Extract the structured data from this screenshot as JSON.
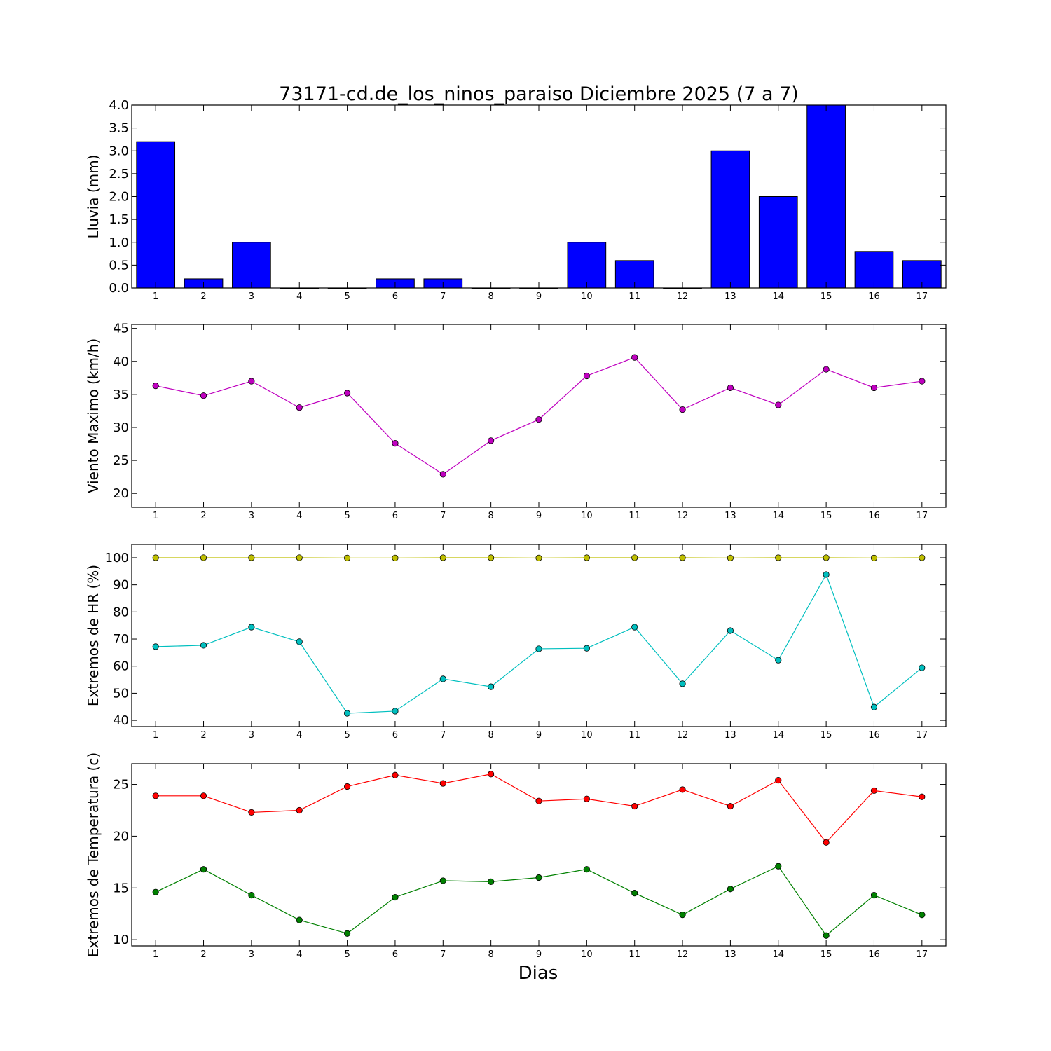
{
  "chart_data": {
    "title": "73171-cd.de_los_ninos_paraiso Diciembre 2025  (7 a 7)",
    "xlabel": "Dias",
    "x": [
      1,
      2,
      3,
      4,
      5,
      6,
      7,
      8,
      9,
      10,
      11,
      12,
      13,
      14,
      15,
      16,
      17
    ],
    "xlim": [
      0.5,
      17.5
    ],
    "panels": [
      {
        "type": "bar",
        "ylabel": "Lluvia (mm)",
        "ylim": [
          0,
          4.0
        ],
        "yticks": [
          0.0,
          0.5,
          1.0,
          1.5,
          2.0,
          2.5,
          3.0,
          3.5,
          4.0
        ],
        "ytick_labels": [
          "0.0",
          "0.5",
          "1.0",
          "1.5",
          "2.0",
          "2.5",
          "3.0",
          "3.5",
          "4.0"
        ],
        "series": [
          {
            "name": "Lluvia",
            "color": "#0000ff",
            "values": [
              3.2,
              0.2,
              1.0,
              0,
              0,
              0.2,
              0.2,
              0,
              0,
              1.0,
              0.6,
              0,
              3.0,
              2.0,
              4.0,
              0.8,
              0.6
            ]
          }
        ]
      },
      {
        "type": "line",
        "ylabel": "Viento Maximo (km/h)",
        "ylim": [
          17.9,
          45.6
        ],
        "yticks": [
          20,
          25,
          30,
          35,
          40,
          45
        ],
        "ytick_labels": [
          "20",
          "25",
          "30",
          "35",
          "40",
          "45"
        ],
        "series": [
          {
            "name": "Viento",
            "color": "#bf00bf",
            "values": [
              36.3,
              34.8,
              37.0,
              33.0,
              35.2,
              27.6,
              22.9,
              28.0,
              31.2,
              37.8,
              40.6,
              32.7,
              36.0,
              33.4,
              38.8,
              36.0,
              37.0
            ]
          }
        ]
      },
      {
        "type": "line",
        "ylabel": "Extremos de HR (%)",
        "ylim": [
          37.7,
          104.9
        ],
        "yticks": [
          40,
          50,
          60,
          70,
          80,
          90,
          100
        ],
        "ytick_labels": [
          "40",
          "50",
          "60",
          "70",
          "80",
          "90",
          "100"
        ],
        "series": [
          {
            "name": "HR max",
            "color": "#bfbf00",
            "values": [
              100,
              100,
              100,
              100,
              99.9,
              99.9,
              100,
              100,
              99.9,
              100,
              100,
              100,
              99.9,
              100,
              100,
              99.9,
              100
            ]
          },
          {
            "name": "HR min",
            "color": "#00bfbf",
            "values": [
              67.2,
              67.7,
              74.4,
              69.0,
              42.6,
              43.4,
              55.3,
              52.4,
              66.4,
              66.6,
              74.4,
              53.5,
              73.1,
              62.2,
              93.8,
              44.9,
              59.4
            ]
          }
        ]
      },
      {
        "type": "line",
        "ylabel": "Extremos de Temperatura (c)",
        "ylim": [
          9.4,
          27.0
        ],
        "yticks": [
          10,
          15,
          20,
          25
        ],
        "ytick_labels": [
          "10",
          "15",
          "20",
          "25"
        ],
        "series": [
          {
            "name": "Temp max",
            "color": "#ff0000",
            "values": [
              23.9,
              23.9,
              22.3,
              22.5,
              24.8,
              25.9,
              25.1,
              26.0,
              23.4,
              23.6,
              22.9,
              24.5,
              22.9,
              25.4,
              19.4,
              24.4,
              23.8
            ]
          },
          {
            "name": "Temp min",
            "color": "#008000",
            "values": [
              14.6,
              16.8,
              14.3,
              11.9,
              10.6,
              14.1,
              15.7,
              15.6,
              16.0,
              16.8,
              14.5,
              12.4,
              14.9,
              17.1,
              10.4,
              14.3,
              12.4
            ]
          }
        ]
      }
    ]
  }
}
